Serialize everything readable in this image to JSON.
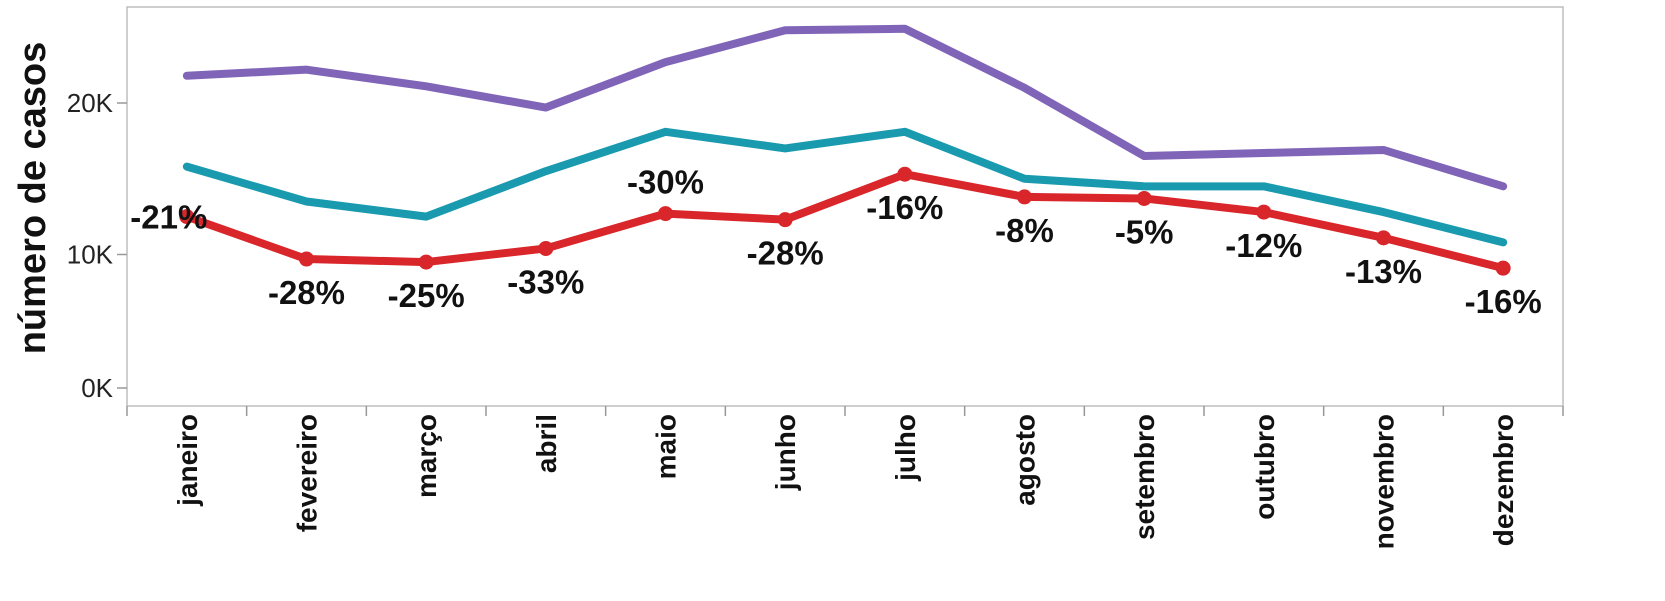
{
  "chart_data": {
    "type": "line",
    "ylabel": "número de casos",
    "xlabel": "",
    "ylim": [
      0,
      26500
    ],
    "y_ticks": [
      0,
      10000,
      20000
    ],
    "y_tick_labels": [
      "0K",
      "10K",
      "20K"
    ],
    "categories": [
      "janeiro",
      "fevereiro",
      "março",
      "abril",
      "maio",
      "junho",
      "julho",
      "agosto",
      "setembro",
      "outubro",
      "novembro",
      "dezembro"
    ],
    "series": [
      {
        "color": "#8064b8",
        "values": [
          21800,
          22200,
          21100,
          19700,
          22700,
          24800,
          24900,
          21000,
          16500,
          16700,
          16900,
          14500
        ],
        "markers": false
      },
      {
        "color": "#1a9aaf",
        "values": [
          15800,
          13500,
          12500,
          15500,
          18100,
          17000,
          18100,
          15000,
          14500,
          14500,
          12800,
          10800
        ],
        "markers": false
      },
      {
        "color": "#d9262b",
        "values": [
          12500,
          9700,
          9500,
          10400,
          12700,
          12300,
          15300,
          13800,
          13700,
          12800,
          11100,
          9100
        ],
        "markers": true,
        "data_labels": [
          "-21%",
          "-28%",
          "-25%",
          "-33%",
          "-30%",
          "-28%",
          "-16%",
          "-8%",
          "-5%",
          "-12%",
          "-13%",
          "-16%"
        ],
        "label_positions": [
          "right",
          "below",
          "below",
          "below",
          "above",
          "below",
          "below",
          "below",
          "below",
          "below",
          "below",
          "below"
        ]
      }
    ],
    "grid": false,
    "legend": "none"
  }
}
